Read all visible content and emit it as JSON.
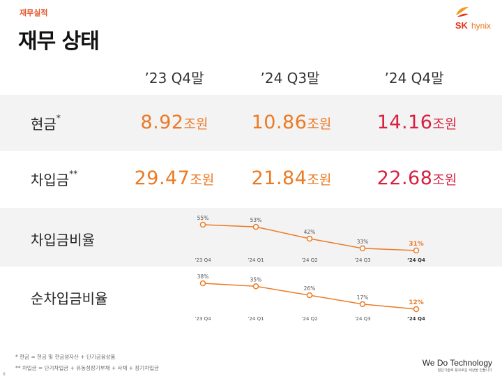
{
  "header": {
    "section": "재무실적",
    "title": "재무 상태",
    "logo_sk": "SK",
    "logo_hynix": "hynix"
  },
  "columns": [
    "’23 Q4말",
    "’24 Q3말",
    "’24 Q4말"
  ],
  "rows": [
    {
      "label": "현금",
      "mark": "*",
      "values": [
        {
          "num": "8.92",
          "unit": "조원",
          "color": "#ec7a24"
        },
        {
          "num": "10.86",
          "unit": "조원",
          "color": "#ec7a24"
        },
        {
          "num": "14.16",
          "unit": "조원",
          "color": "#d8213f"
        }
      ]
    },
    {
      "label": "차입금",
      "mark": "**",
      "values": [
        {
          "num": "29.47",
          "unit": "조원",
          "color": "#ec7a24"
        },
        {
          "num": "21.84",
          "unit": "조원",
          "color": "#ec7a24"
        },
        {
          "num": "22.68",
          "unit": "조원",
          "color": "#d8213f"
        }
      ]
    }
  ],
  "chart_data": [
    {
      "type": "line",
      "title": "차입금비율",
      "categories": [
        "’23 Q4",
        "’24 Q1",
        "’24 Q2",
        "’24 Q3",
        "’24 Q4"
      ],
      "series": [
        {
          "name": "차입금비율",
          "values": [
            55,
            53,
            42,
            33,
            31
          ],
          "labels": [
            "55%",
            "53%",
            "42%",
            "33%",
            "31%"
          ]
        }
      ],
      "ylim": [
        0,
        60
      ],
      "color": "#ec7a24"
    },
    {
      "type": "line",
      "title": "순차입금비율",
      "categories": [
        "’23 Q4",
        "’24 Q1",
        "’24 Q2",
        "’24 Q3",
        "’24 Q4"
      ],
      "series": [
        {
          "name": "순차입금비율",
          "values": [
            38,
            35,
            26,
            17,
            12
          ],
          "labels": [
            "38%",
            "35%",
            "26%",
            "17%",
            "12%"
          ]
        }
      ],
      "ylim": [
        0,
        40
      ],
      "color": "#ec7a24"
    }
  ],
  "footnotes": [
    "* 현금 = 현금 및 현금성자산 + 단기금융상품",
    "** 차입금 = 단기차입금 + 유동성장기부채 + 사채 + 장기차입금"
  ],
  "footer": {
    "brand": "We Do Technology",
    "tagline": "첨단기술로 풍요로운 세상을 만듭니다",
    "page": "8"
  }
}
